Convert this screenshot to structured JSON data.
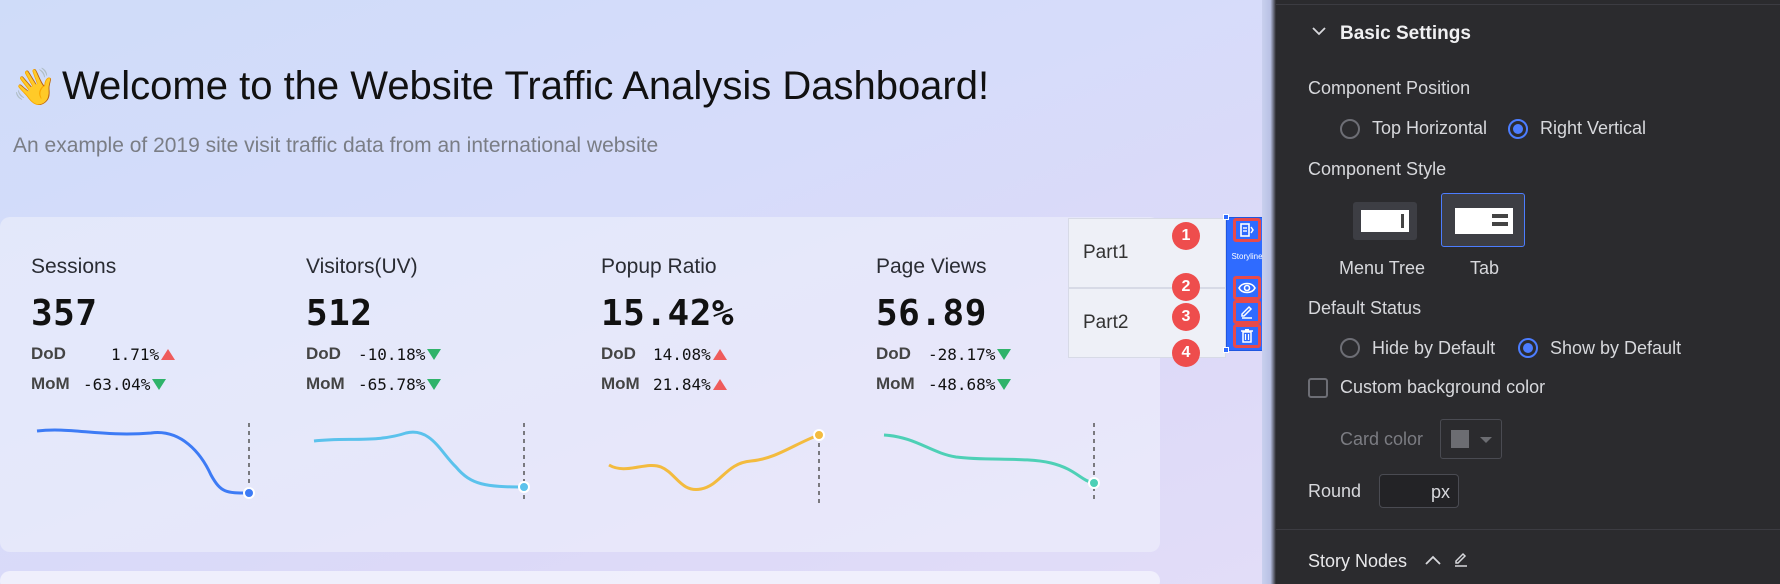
{
  "dashboard": {
    "title": "Welcome to the Website Traffic Analysis Dashboard!",
    "wave_emoji": "👋",
    "subtitle": "An example of 2019 site visit traffic data from an international website",
    "cards": [
      {
        "label": "Sessions",
        "value": "357",
        "dod_label": "DoD",
        "dod": "1.71%",
        "dod_trend": "up",
        "mom_label": "MoM",
        "mom": "-63.04%",
        "mom_trend": "down",
        "line_color": "#3d7bf5"
      },
      {
        "label": "Visitors(UV)",
        "value": "512",
        "dod_label": "DoD",
        "dod": "-10.18%",
        "dod_trend": "down",
        "mom_label": "MoM",
        "mom": "-65.78%",
        "mom_trend": "down",
        "line_color": "#5bc2ec"
      },
      {
        "label": "Popup Ratio",
        "value": "15.42%",
        "dod_label": "DoD",
        "dod": "14.08%",
        "dod_trend": "up",
        "mom_label": "MoM",
        "mom": "21.84%",
        "mom_trend": "up",
        "line_color": "#f3bb3e"
      },
      {
        "label": "Page Views",
        "value": "56.89",
        "dod_label": "DoD",
        "dod": "-28.17%",
        "dod_trend": "down",
        "mom_label": "MoM",
        "mom": "-48.68%",
        "mom_trend": "down",
        "line_color": "#4ed0b6"
      }
    ],
    "storyline": {
      "parts": [
        "Part1",
        "Part2"
      ],
      "bar_label": "Storyline",
      "badges": [
        "1",
        "2",
        "3",
        "4"
      ],
      "tool_icons": [
        "storyline-icon",
        "eye-icon",
        "edit-icon",
        "trash-icon"
      ]
    }
  },
  "settings": {
    "section_title": "Basic Settings",
    "position_label": "Component Position",
    "position_options": [
      "Top Horizontal",
      "Right Vertical"
    ],
    "position_selected": "Right Vertical",
    "style_label": "Component Style",
    "style_options": [
      "Menu Tree",
      "Tab"
    ],
    "style_selected": "Tab",
    "status_label": "Default Status",
    "status_options": [
      "Hide by Default",
      "Show by Default"
    ],
    "status_selected": "Show by Default",
    "custom_bg_label": "Custom background color",
    "custom_bg_checked": false,
    "card_color_label": "Card color",
    "round_label": "Round",
    "round_value": "",
    "round_unit": "px",
    "story_nodes_label": "Story Nodes",
    "accent_color": "#4c7dff"
  }
}
